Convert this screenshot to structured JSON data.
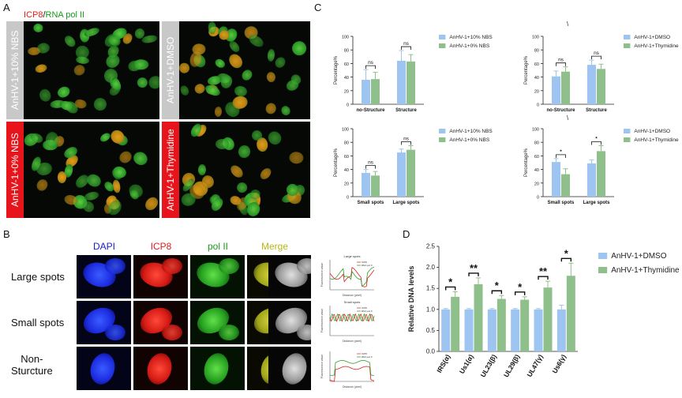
{
  "panel_a": {
    "letter": "A",
    "title_icp8": "ICP8",
    "title_sep": "/",
    "title_pol": "RNA pol II",
    "labels": [
      "AnHV-1+10% NBS",
      "AnHV-1+DMSO",
      "AnHV-1+0% NBS",
      "AnHV-1+Thymidine"
    ],
    "label_colors": [
      "#c8c8c8",
      "#c8c8c8",
      "#e8141c",
      "#e8141c"
    ]
  },
  "panel_b": {
    "letter": "B",
    "headers": [
      "DAPI",
      "ICP8",
      "pol II",
      "Merge"
    ],
    "header_colors": [
      "#1a1ad0",
      "#e21b1b",
      "#1a9a1a",
      "#b6b61a"
    ],
    "rows": [
      "Large spots",
      "Small spots",
      "Non-\nSturcture"
    ],
    "mini_titles": [
      "Large spots",
      "Small spots",
      ""
    ],
    "mini_xlabel": "Distance (pixel)",
    "mini_ylabel": "Fluorescence value",
    "mini_legend": [
      "ICP8",
      "RNA pol II"
    ]
  },
  "panel_c_letter": "C",
  "panel_d_letter": "D",
  "chart_data": [
    {
      "type": "bar",
      "categories": [
        "no-Structure",
        "Structure"
      ],
      "series": [
        {
          "name": "AnHV-1+10% NBS",
          "values": [
            36,
            64
          ],
          "errors": [
            15,
            15
          ],
          "color": "#9ec4f2"
        },
        {
          "name": "AnHV-1+0% NBS",
          "values": [
            37,
            63
          ],
          "errors": [
            10,
            10
          ],
          "color": "#8fbf8a"
        }
      ],
      "ylabel": "Percentage%",
      "ylim": [
        0,
        100
      ],
      "yticks": [
        0,
        20,
        40,
        60,
        80,
        100
      ],
      "annotations": [
        "ns",
        "ns"
      ],
      "legend": "right"
    },
    {
      "type": "bar",
      "categories": [
        "no-Structure",
        "Structure"
      ],
      "series": [
        {
          "name": "AnHV-1+DMSO",
          "values": [
            41,
            58
          ],
          "errors": [
            8,
            7
          ],
          "color": "#9ec4f2"
        },
        {
          "name": "AnHV-1+Thymidine",
          "values": [
            48,
            52
          ],
          "errors": [
            7,
            7
          ],
          "color": "#8fbf8a"
        }
      ],
      "ylabel": "Percentage%",
      "ylim": [
        0,
        100
      ],
      "yticks": [
        0,
        20,
        40,
        60,
        80,
        100
      ],
      "annotations": [
        "ns",
        "ns"
      ],
      "corner_mark": "\\",
      "legend": "right"
    },
    {
      "type": "bar",
      "categories": [
        "Small spots",
        "Large spots"
      ],
      "series": [
        {
          "name": "AnHV-1+10% NBS",
          "values": [
            35,
            65
          ],
          "errors": [
            5,
            5
          ],
          "color": "#9ec4f2"
        },
        {
          "name": "AnHV-1+0% NBS",
          "values": [
            31,
            69
          ],
          "errors": [
            6,
            6
          ],
          "color": "#8fbf8a"
        }
      ],
      "ylabel": "Percentage%",
      "ylim": [
        0,
        100
      ],
      "yticks": [
        0,
        20,
        40,
        60,
        80,
        100
      ],
      "annotations": [
        "ns",
        "ns"
      ],
      "legend": "right"
    },
    {
      "type": "bar",
      "categories": [
        "Small spots",
        "Large spots"
      ],
      "series": [
        {
          "name": "AnHV-1+DMSO",
          "values": [
            51,
            49
          ],
          "errors": [
            5,
            5
          ],
          "color": "#9ec4f2"
        },
        {
          "name": "AnHV-1+Thymidine",
          "values": [
            33,
            67
          ],
          "errors": [
            8,
            8
          ],
          "color": "#8fbf8a"
        }
      ],
      "ylabel": "Percentage%",
      "ylim": [
        0,
        100
      ],
      "yticks": [
        0,
        20,
        40,
        60,
        80,
        100
      ],
      "annotations": [
        "*",
        "*"
      ],
      "corner_mark": "\\",
      "legend": "right"
    },
    {
      "type": "bar",
      "categories": [
        "IRS(α)",
        "Us1(α)",
        "UL23(β)",
        "UL29(β)",
        "UL47(γ)",
        "Us6(γ)"
      ],
      "series": [
        {
          "name": "AnHV-1+DMSO",
          "values": [
            1.0,
            1.0,
            1.0,
            1.0,
            1.0,
            1.0
          ],
          "errors": [
            0.02,
            0.02,
            0.02,
            0.02,
            0.02,
            0.1
          ],
          "color": "#9ec4f2"
        },
        {
          "name": "AnHV-1+Thymidine",
          "values": [
            1.3,
            1.6,
            1.25,
            1.23,
            1.52,
            1.8
          ],
          "errors": [
            0.12,
            0.15,
            0.08,
            0.07,
            0.15,
            0.3
          ],
          "color": "#8fbf8a"
        }
      ],
      "ylabel": "Relative DNA levels",
      "ylim": [
        0,
        2.5
      ],
      "yticks": [
        "0.0",
        "0.5",
        "1.0",
        "1.5",
        "2.0",
        "2.5"
      ],
      "annotations": [
        "*",
        "**",
        "*",
        "*",
        "**",
        "*"
      ],
      "legend": "right"
    }
  ]
}
